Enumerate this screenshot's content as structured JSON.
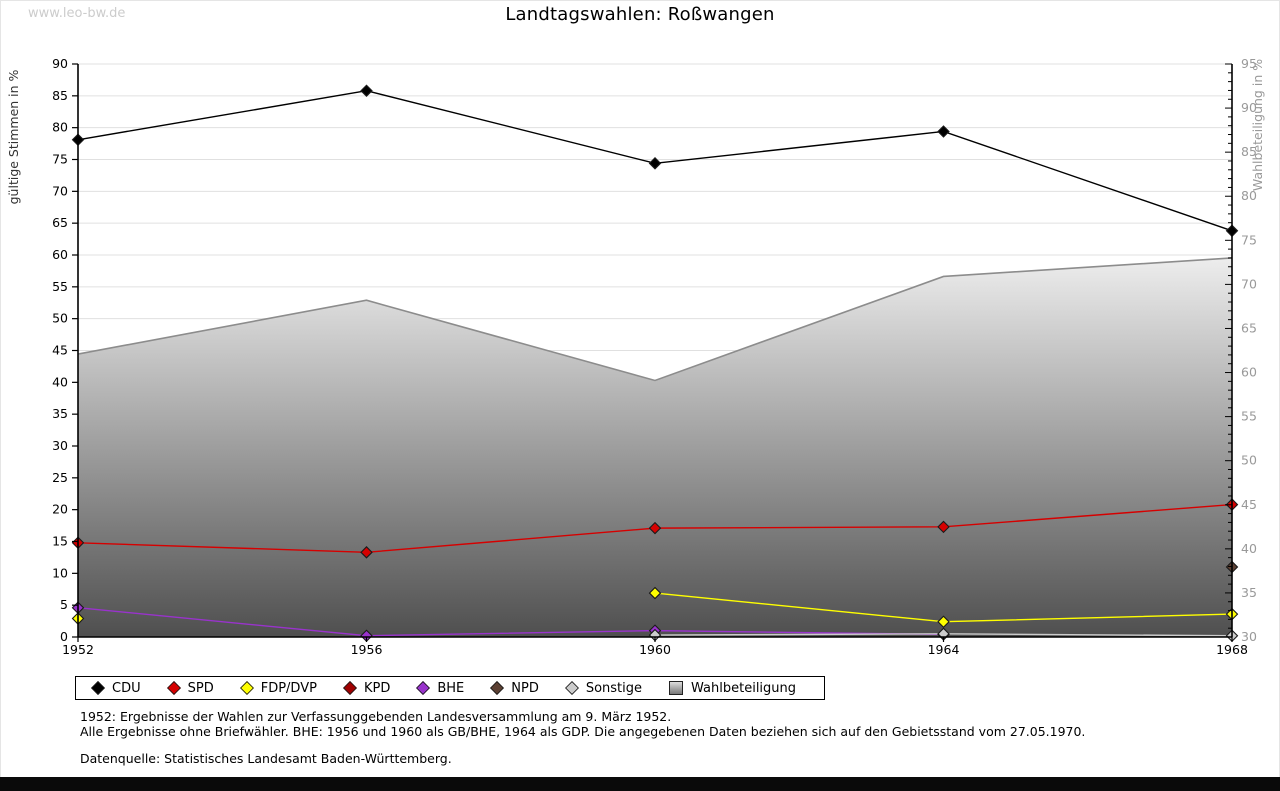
{
  "watermark": "www.leo-bw.de",
  "title": "Landtagswahlen: Roßwangen",
  "footnotes": {
    "line1": "1952: Ergebnisse der Wahlen zur Verfassunggebenden Landesversammlung am 9. März 1952.",
    "line2": "Alle Ergebnisse ohne Briefwähler. BHE: 1956 und 1960 als GB/BHE, 1964 als GDP. Die angegebenen Daten beziehen sich auf den Gebietsstand vom 27.05.1970.",
    "source": "Datenquelle: Statistisches Landesamt Baden-Württemberg."
  },
  "chart_data": {
    "type": "line",
    "title": "Landtagswahlen: Roßwangen",
    "categories": [
      1952,
      1956,
      1960,
      1964,
      1968
    ],
    "left_axis": {
      "label": "gültige Stimmen in %",
      "min": 0,
      "max": 90,
      "step": 5,
      "color": "#333333"
    },
    "right_axis": {
      "label": "Wahlbeteiligung in %",
      "min": 30,
      "max": 95,
      "step": 5,
      "minor_step": 1,
      "color": "#999999"
    },
    "grid": true,
    "legend_position": "bottom",
    "series": [
      {
        "name": "CDU",
        "axis": "left",
        "color": "#000000",
        "marker": "diamond",
        "values": [
          78.1,
          85.8,
          74.4,
          79.4,
          63.8
        ]
      },
      {
        "name": "SPD",
        "axis": "left",
        "color": "#d60000",
        "marker": "diamond",
        "values": [
          14.8,
          13.3,
          17.1,
          17.3,
          20.8
        ]
      },
      {
        "name": "FDP/DVP",
        "axis": "left",
        "color": "#ffff00",
        "marker": "diamond",
        "values": [
          2.9,
          null,
          6.9,
          2.4,
          3.6
        ]
      },
      {
        "name": "KPD",
        "axis": "left",
        "color": "#a00000",
        "marker": "diamond",
        "values": [
          null,
          null,
          null,
          null,
          null
        ]
      },
      {
        "name": "BHE",
        "axis": "left",
        "color": "#9933cc",
        "marker": "diamond",
        "values": [
          4.6,
          0.2,
          1.0,
          0.4,
          null
        ]
      },
      {
        "name": "NPD",
        "axis": "left",
        "color": "#5c4033",
        "marker": "diamond",
        "values": [
          null,
          null,
          null,
          null,
          11.0
        ]
      },
      {
        "name": "Sonstige",
        "axis": "left",
        "color": "#cccccc",
        "marker": "diamond",
        "values": [
          null,
          null,
          0.3,
          0.5,
          0.2
        ]
      },
      {
        "name": "Wahlbeteiligung",
        "axis": "right",
        "type": "area",
        "marker": "square",
        "fill_top": "#ededed",
        "fill_bottom": "#4f4f4f",
        "edge_color": "#8c8c8c",
        "values": [
          62.1,
          68.2,
          59.1,
          70.9,
          73.0
        ]
      }
    ]
  }
}
